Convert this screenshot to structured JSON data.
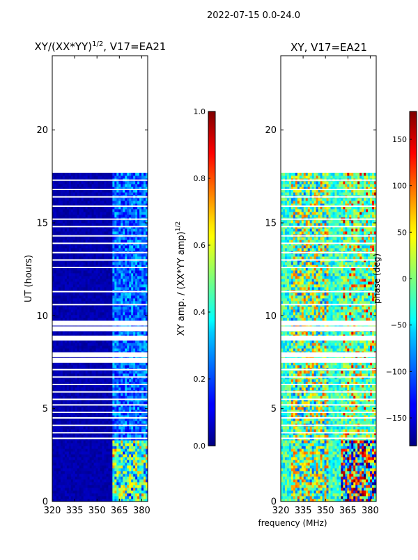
{
  "suptitle": "2022-07-15 0.0-24.0",
  "shared": {
    "xlabel": "frequency (MHz)",
    "ylabel": "UT (hours)"
  },
  "chart_data": [
    {
      "type": "heatmap",
      "title": "XY/(XX*YY)¹ᐟ², V17=EA21",
      "title_base": "XY/(XX*YY)",
      "title_exp": "1/2",
      "title_tail": ", V17=EA21",
      "xlabel": "",
      "ylabel": "UT (hours)",
      "xlim": [
        320,
        384
      ],
      "ylim": [
        0,
        24
      ],
      "x_ticks": [
        320,
        335,
        350,
        365,
        380
      ],
      "y_ticks": [
        0,
        5,
        10,
        15,
        20
      ],
      "colorbar": {
        "label_base": "XY amp. / (XX*YY amp)",
        "label_exp": "1/2",
        "range": [
          0,
          1
        ],
        "ticks": [
          "0.0",
          "0.2",
          "0.4",
          "0.6",
          "0.8",
          "1.0"
        ],
        "tick_values": [
          0,
          0.2,
          0.4,
          0.6,
          0.8,
          1.0
        ]
      },
      "colormap": "jet",
      "data_gaps_ut_hours": [
        [
          17.75,
          22.45
        ],
        [
          22.55,
          24.0
        ]
      ]
    },
    {
      "type": "heatmap",
      "title": "XY, V17=EA21",
      "xlabel": "frequency (MHz)",
      "ylabel": "",
      "xlim": [
        320,
        384
      ],
      "ylim": [
        0,
        24
      ],
      "x_ticks": [
        320,
        335,
        350,
        365,
        380
      ],
      "y_ticks": [
        0,
        5,
        10,
        15,
        20
      ],
      "colorbar": {
        "label": "phase (deg)",
        "range": [
          -180,
          180
        ],
        "ticks": [
          "−150",
          "−100",
          "−50",
          "0",
          "50",
          "100",
          "150"
        ],
        "tick_values": [
          -150,
          -100,
          -50,
          0,
          50,
          100,
          150
        ]
      },
      "colormap": "jet",
      "data_gaps_ut_hours": [
        [
          17.75,
          22.45
        ],
        [
          22.55,
          24.0
        ]
      ]
    }
  ],
  "colors": {
    "jet_dark_blue": "#00007f",
    "jet_blue": "#0000ff",
    "jet_cyan": "#00ffff",
    "jet_yellow": "#ffff00",
    "jet_red": "#ff0000",
    "jet_dark_red": "#7f0000"
  }
}
